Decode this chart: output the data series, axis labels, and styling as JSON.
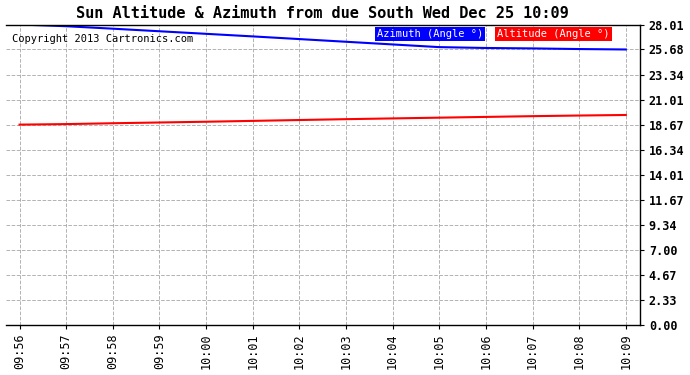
{
  "title": "Sun Altitude & Azimuth from due South Wed Dec 25 10:09",
  "copyright": "Copyright 2013 Cartronics.com",
  "x_labels": [
    "09:56",
    "09:57",
    "09:58",
    "09:59",
    "10:00",
    "10:01",
    "10:02",
    "10:03",
    "10:04",
    "10:05",
    "10:06",
    "10:07",
    "10:08",
    "10:09"
  ],
  "azimuth_values": [
    28.01,
    27.85,
    27.62,
    27.38,
    27.14,
    26.9,
    26.65,
    26.4,
    26.15,
    25.9,
    25.82,
    25.78,
    25.72,
    25.68
  ],
  "altitude_values": [
    18.67,
    18.72,
    18.8,
    18.87,
    18.94,
    19.02,
    19.1,
    19.18,
    19.25,
    19.32,
    19.39,
    19.46,
    19.52,
    19.57
  ],
  "azimuth_color": "#0000FF",
  "altitude_color": "#FF0000",
  "background_color": "#FFFFFF",
  "plot_bg_color": "#FFFFFF",
  "grid_color": "#AAAAAA",
  "ytick_labels": [
    "0.00",
    "2.33",
    "4.67",
    "7.00",
    "9.34",
    "11.67",
    "14.01",
    "16.34",
    "18.67",
    "21.01",
    "23.34",
    "25.68",
    "28.01"
  ],
  "ytick_values": [
    0.0,
    2.33,
    4.67,
    7.0,
    9.34,
    11.67,
    14.01,
    16.34,
    18.67,
    21.01,
    23.34,
    25.68,
    28.01
  ],
  "ylim": [
    0.0,
    28.01
  ],
  "legend_azimuth_label": "Azimuth (Angle °)",
  "legend_altitude_label": "Altitude (Angle °)",
  "legend_azimuth_bg": "#0000FF",
  "legend_altitude_bg": "#FF0000",
  "title_fontsize": 11,
  "tick_fontsize": 8.5,
  "copyright_fontsize": 7.5
}
